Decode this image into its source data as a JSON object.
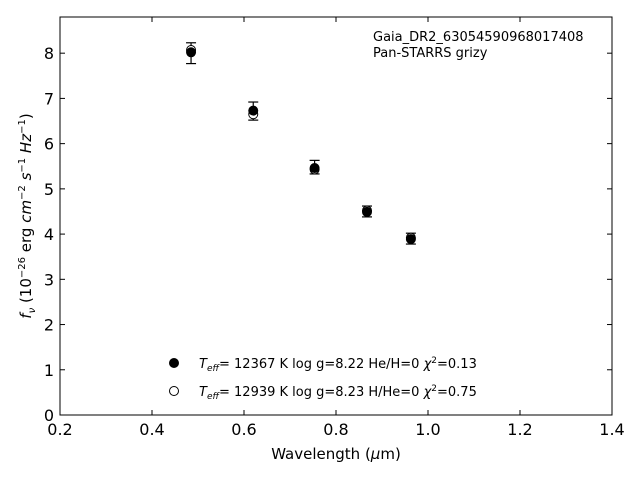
{
  "chart_data": {
    "type": "scatter",
    "title": "",
    "xlabel": "Wavelength (μm)",
    "ylabel": "fν (10⁻²⁶ erg cm⁻² s⁻¹ Hz⁻¹)",
    "xlim": [
      0.2,
      1.4
    ],
    "ylim": [
      0,
      8.8
    ],
    "xticks": [
      0.2,
      0.4,
      0.6,
      0.8,
      1.0,
      1.2,
      1.4
    ],
    "xtick_labels": [
      "0.2",
      "0.4",
      "0.6",
      "0.8",
      "1.0",
      "1.2",
      "1.4"
    ],
    "yticks": [
      0,
      1,
      2,
      3,
      4,
      5,
      6,
      7,
      8
    ],
    "ytick_labels": [
      "0",
      "1",
      "2",
      "3",
      "4",
      "5",
      "6",
      "7",
      "8"
    ],
    "grid": false,
    "legend_position": "bottom-center",
    "annotations": [
      "Gaia_DR2_63054590968017408",
      "Pan-STARRS grizy"
    ],
    "observed": {
      "x": [
        0.4849,
        0.6201,
        0.7535,
        0.8674,
        0.9628
      ],
      "y": [
        8.0,
        6.72,
        5.48,
        4.5,
        3.9
      ],
      "yerr": [
        0.23,
        0.2,
        0.15,
        0.12,
        0.12
      ]
    },
    "series": [
      {
        "name": "Teff= 12367 K  log g=8.22  He/H=0  χ²=0.13",
        "marker": "filled-circle",
        "x": [
          0.4849,
          0.6201,
          0.7535,
          0.8674,
          0.9628
        ],
        "y": [
          8.02,
          6.73,
          5.46,
          4.49,
          3.89
        ]
      },
      {
        "name": "Teff= 12939 K  log g=8.23  H/He=0  χ²=0.75",
        "marker": "open-circle",
        "x": [
          0.4849,
          0.6201,
          0.7535,
          0.8674,
          0.9628
        ],
        "y": [
          8.07,
          6.65,
          5.43,
          4.52,
          3.92
        ]
      }
    ]
  }
}
